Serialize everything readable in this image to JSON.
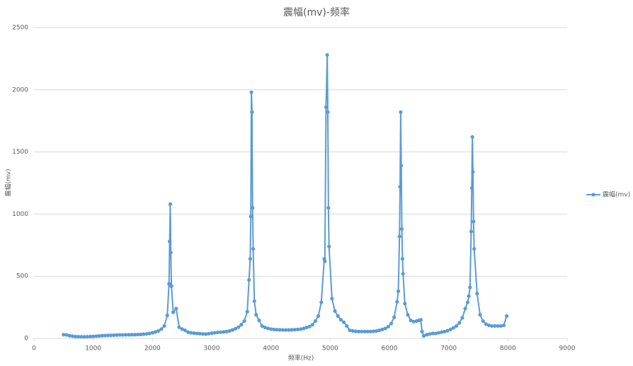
{
  "chart_data": {
    "type": "line",
    "title": "震幅(mv)-频率",
    "x_label": "频率(Hz)",
    "y_label": "震幅(mv)",
    "x": [
      500,
      550,
      600,
      650,
      700,
      750,
      800,
      850,
      900,
      950,
      1000,
      1050,
      1100,
      1150,
      1200,
      1250,
      1300,
      1350,
      1400,
      1450,
      1500,
      1550,
      1600,
      1650,
      1700,
      1750,
      1800,
      1850,
      1900,
      1950,
      2000,
      2050,
      2100,
      2150,
      2200,
      2250,
      2280,
      2290,
      2300,
      2310,
      2320,
      2350,
      2400,
      2450,
      2500,
      2550,
      2600,
      2650,
      2700,
      2750,
      2800,
      2850,
      2900,
      2950,
      3000,
      3050,
      3100,
      3150,
      3200,
      3250,
      3300,
      3350,
      3400,
      3450,
      3500,
      3550,
      3600,
      3630,
      3650,
      3660,
      3670,
      3680,
      3690,
      3700,
      3720,
      3750,
      3800,
      3850,
      3900,
      3950,
      4000,
      4050,
      4100,
      4150,
      4200,
      4250,
      4300,
      4350,
      4400,
      4450,
      4500,
      4550,
      4600,
      4650,
      4700,
      4750,
      4800,
      4850,
      4900,
      4910,
      4930,
      4950,
      4960,
      4970,
      4980,
      5030,
      5080,
      5130,
      5180,
      5230,
      5280,
      5330,
      5380,
      5430,
      5480,
      5530,
      5580,
      5630,
      5680,
      5730,
      5780,
      5830,
      5880,
      5930,
      5980,
      6030,
      6080,
      6130,
      6150,
      6170,
      6180,
      6190,
      6200,
      6210,
      6220,
      6230,
      6260,
      6310,
      6360,
      6410,
      6460,
      6500,
      6530,
      6550,
      6580,
      6630,
      6680,
      6730,
      6780,
      6830,
      6880,
      6930,
      6980,
      7030,
      7080,
      7130,
      7180,
      7230,
      7280,
      7320,
      7340,
      7360,
      7380,
      7390,
      7400,
      7410,
      7420,
      7430,
      7480,
      7530,
      7580,
      7630,
      7680,
      7730,
      7780,
      7830,
      7880,
      7930,
      7980
    ],
    "series": [
      {
        "name": "震幅(mv)",
        "color": "#5b9bd5",
        "values": [
          30,
          28,
          22,
          18,
          15,
          14,
          13,
          13,
          14,
          15,
          16,
          18,
          20,
          22,
          23,
          24,
          25,
          26,
          27,
          28,
          28,
          29,
          29,
          30,
          30,
          31,
          32,
          34,
          36,
          40,
          45,
          52,
          60,
          75,
          100,
          185,
          440,
          780,
          1080,
          690,
          420,
          210,
          240,
          90,
          75,
          65,
          50,
          45,
          42,
          40,
          38,
          36,
          35,
          38,
          42,
          45,
          48,
          50,
          52,
          55,
          60,
          68,
          78,
          90,
          110,
          140,
          215,
          470,
          640,
          980,
          1980,
          1820,
          1050,
          720,
          300,
          190,
          145,
          100,
          88,
          80,
          75,
          72,
          70,
          69,
          68,
          68,
          68,
          69,
          70,
          72,
          75,
          80,
          88,
          95,
          110,
          140,
          180,
          290,
          640,
          620,
          1860,
          2280,
          1820,
          1050,
          740,
          320,
          220,
          180,
          150,
          130,
          100,
          65,
          60,
          57,
          55,
          55,
          55,
          55,
          55,
          57,
          60,
          65,
          72,
          80,
          95,
          120,
          170,
          295,
          380,
          820,
          1220,
          1820,
          1390,
          880,
          640,
          520,
          280,
          190,
          145,
          135,
          140,
          145,
          150,
          55,
          20,
          30,
          35,
          40,
          40,
          45,
          50,
          55,
          62,
          72,
          85,
          100,
          125,
          165,
          240,
          290,
          340,
          410,
          860,
          1210,
          1620,
          1340,
          940,
          720,
          360,
          190,
          140,
          115,
          105,
          100,
          100,
          100,
          100,
          105,
          180
        ]
      }
    ],
    "xlim": [
      0,
      9000
    ],
    "xticks": [
      0,
      1000,
      2000,
      3000,
      4000,
      5000,
      6000,
      7000,
      8000,
      9000
    ],
    "ylim": [
      0,
      2500
    ],
    "yticks": [
      0,
      500,
      1000,
      1500,
      2000,
      2500
    ],
    "grid": true,
    "legend": "right"
  }
}
